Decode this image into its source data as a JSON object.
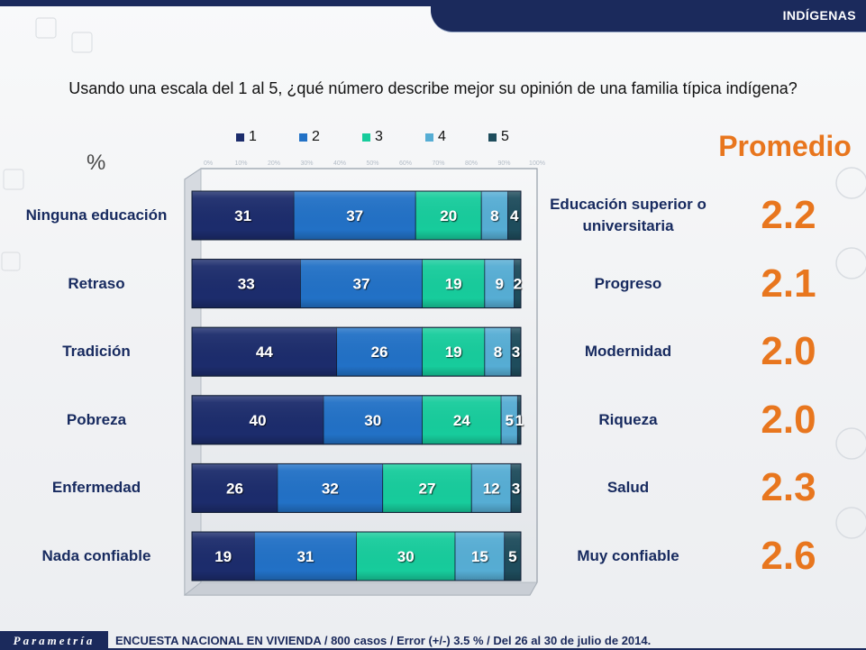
{
  "header": {
    "tab_label": "INDÍGENAS"
  },
  "question": "Usando una escala del 1 al 5, ¿qué número describe mejor su opinión de una familia típica indígena?",
  "colors": {
    "navy": "#1b2a5c",
    "accent": "#e8761e",
    "label_text": "#172a5f"
  },
  "chart_data": {
    "type": "bar",
    "orientation": "horizontal",
    "stacked": true,
    "ylabel": "%",
    "xlim": [
      0,
      100
    ],
    "x_tick_labels": [
      "0%",
      "10%",
      "20%",
      "30%",
      "40%",
      "50%",
      "60%",
      "70%",
      "80%",
      "90%",
      "100%"
    ],
    "grid": false,
    "legend_position": "top",
    "categories": [
      "Ninguna educación",
      "Retraso",
      "Tradición",
      "Pobreza",
      "Enfermedad",
      "Nada confiable"
    ],
    "opposite_categories": [
      "Educación superior o universitaria",
      "Progreso",
      "Modernidad",
      "Riqueza",
      "Salud",
      "Muy confiable"
    ],
    "series": [
      {
        "name": "1",
        "color": "#1c2c6c",
        "values": [
          31,
          33,
          44,
          40,
          26,
          19
        ]
      },
      {
        "name": "2",
        "color": "#2271c6",
        "values": [
          37,
          37,
          26,
          30,
          32,
          31
        ]
      },
      {
        "name": "3",
        "color": "#17cc9c",
        "values": [
          20,
          19,
          19,
          24,
          27,
          30
        ]
      },
      {
        "name": "4",
        "color": "#56add4",
        "values": [
          8,
          9,
          8,
          5,
          12,
          15
        ]
      },
      {
        "name": "5",
        "color": "#1e4c5c",
        "values": [
          4,
          2,
          3,
          1,
          3,
          5
        ]
      }
    ],
    "average_title": "Promedio",
    "averages": [
      "2.2",
      "2.1",
      "2.0",
      "2.0",
      "2.3",
      "2.6"
    ]
  },
  "footer": {
    "logo_text": "Parametría",
    "source": "ENCUESTA NACIONAL EN VIVIENDA / 800 casos / Error (+/-) 3.5 % / Del 26 al 30 de julio de 2014."
  }
}
